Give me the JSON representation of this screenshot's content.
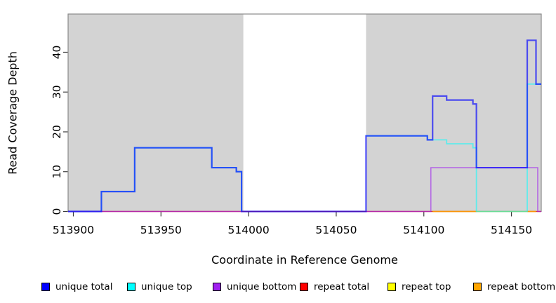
{
  "window": {
    "background": "#FFFFFF"
  },
  "chart_data": {
    "type": "line",
    "subtype": "step-coverage",
    "title": "",
    "xlabel": "Coordinate in Reference Genome",
    "ylabel": "Read Coverage Depth",
    "xlim": [
      513897,
      514167
    ],
    "ylim": [
      0,
      49.6
    ],
    "x_ticks": [
      513900,
      513950,
      514000,
      514050,
      514100,
      514150
    ],
    "y_ticks": [
      0,
      10,
      20,
      30,
      40
    ],
    "grid": false,
    "legend_position": "bottom",
    "plot_bg": "#FFFFFF",
    "box_color": "#8a8a8a",
    "tick_color": "#3a3a3a",
    "shaded_regions": [
      {
        "from": 513897,
        "to": 513997,
        "color": "#D3D3D3"
      },
      {
        "from": 514067,
        "to": 514167,
        "color": "#D3D3D3"
      }
    ],
    "series": [
      {
        "name": "repeat total",
        "color": "#FF0000",
        "width": 1.4,
        "opacity": 0.6,
        "paths": [
          [
            [
              513897,
              0
            ],
            [
              514167,
              0
            ]
          ]
        ]
      },
      {
        "name": "repeat top",
        "color": "#FFFF00",
        "width": 1.6,
        "opacity": 0.6,
        "paths": [
          [
            [
              514130,
              0
            ],
            [
              514159,
              0
            ]
          ]
        ]
      },
      {
        "name": "repeat bottom",
        "color": "#FFA500",
        "width": 1.8,
        "opacity": 0.85,
        "paths": [
          [
            [
              514105,
              0
            ],
            [
              514130,
              0
            ]
          ],
          [
            [
              514159,
              0
            ],
            [
              514164,
              0
            ]
          ]
        ]
      },
      {
        "name": "unique top",
        "color": "#00FFFF",
        "width": 1.8,
        "opacity": 0.55,
        "paths": [
          [
            [
              513897,
              0
            ],
            [
              513916,
              5
            ],
            [
              513935,
              16
            ],
            [
              513979,
              11
            ],
            [
              513993,
              10
            ],
            [
              513996,
              0
            ]
          ],
          [
            [
              514067,
              19
            ],
            [
              514102,
              18
            ],
            [
              514113,
              17
            ],
            [
              514128,
              16
            ],
            [
              514130,
              0
            ],
            [
              514159,
              32
            ],
            [
              514167,
              32
            ]
          ]
        ]
      },
      {
        "name": "unique bottom",
        "color": "#A020F0",
        "width": 1.6,
        "opacity": 0.6,
        "paths": [
          [
            [
              513897,
              0
            ],
            [
              513996,
              0
            ]
          ],
          [
            [
              514067,
              0
            ],
            [
              514104,
              11
            ],
            [
              514165,
              0
            ],
            [
              514167,
              0
            ]
          ]
        ]
      },
      {
        "name": "unique total",
        "color": "#0000FF",
        "width": 2.2,
        "opacity": 0.65,
        "paths": [
          [
            [
              513897,
              0
            ],
            [
              513916,
              5
            ],
            [
              513935,
              16
            ],
            [
              513979,
              11
            ],
            [
              513993,
              10
            ],
            [
              513996,
              0
            ],
            [
              514067,
              19
            ],
            [
              514102,
              18
            ],
            [
              514105,
              29
            ],
            [
              514113,
              28
            ],
            [
              514128,
              27
            ],
            [
              514130,
              11
            ],
            [
              514159,
              43
            ],
            [
              514164,
              32
            ],
            [
              514167,
              32
            ]
          ]
        ]
      }
    ]
  },
  "legend": {
    "items": [
      {
        "label": "unique total",
        "color": "#0000FF"
      },
      {
        "label": "unique top",
        "color": "#00FFFF"
      },
      {
        "label": "unique bottom",
        "color": "#A020F0"
      },
      {
        "label": "repeat total",
        "color": "#FF0000"
      },
      {
        "label": "repeat top",
        "color": "#FFFF00"
      },
      {
        "label": "repeat bottom",
        "color": "#FFA500"
      }
    ]
  }
}
